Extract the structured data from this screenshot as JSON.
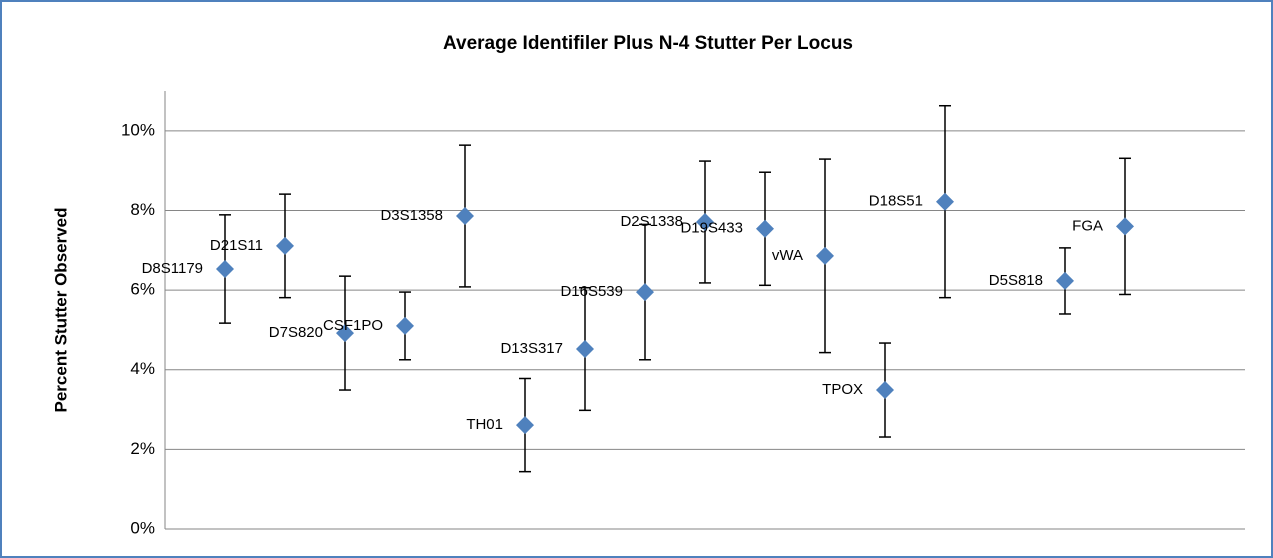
{
  "chart_data": {
    "type": "scatter",
    "title": "Average Identifiler Plus N-4 Stutter Per Locus",
    "y_label": "Percent Stutter Observed",
    "x": [
      1,
      2,
      3,
      4,
      5,
      6,
      7,
      8,
      9,
      10,
      11,
      12,
      13,
      15,
      16
    ],
    "labels": [
      "D8S1179",
      "D21S11",
      "D7S820",
      "CSF1PO",
      "D3S1358",
      "TH01",
      "D13S317",
      "D16S539",
      "D2S1338",
      "D19S433",
      "vWA",
      "TPOX",
      "D18S51",
      "D5S818",
      "FGA"
    ],
    "values": [
      6.53,
      7.11,
      4.92,
      5.1,
      7.86,
      2.61,
      4.52,
      5.95,
      7.71,
      7.54,
      6.86,
      3.49,
      8.22,
      6.23,
      7.6
    ],
    "errors": [
      1.36,
      1.3,
      1.43,
      0.85,
      1.78,
      1.17,
      1.54,
      1.7,
      1.53,
      1.42,
      2.43,
      1.18,
      2.41,
      0.83,
      1.71
    ],
    "color": "#4f81bd",
    "xlim": [
      0,
      18
    ],
    "ylim": [
      0,
      11
    ],
    "yticks": [
      {
        "value": 0,
        "label": "0%"
      },
      {
        "value": 2,
        "label": "2%"
      },
      {
        "value": 4,
        "label": "4%"
      },
      {
        "value": 6,
        "label": "6%"
      },
      {
        "value": 8,
        "label": "8%"
      },
      {
        "value": 10,
        "label": "10%"
      }
    ],
    "grid": true
  }
}
